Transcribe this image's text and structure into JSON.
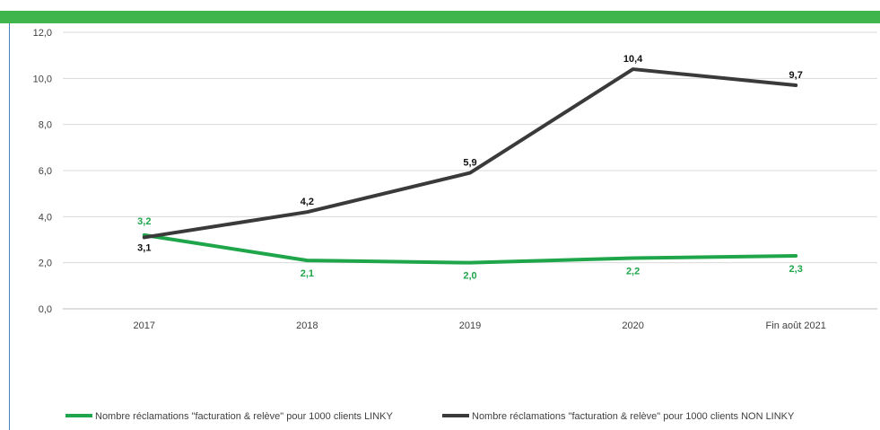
{
  "colors": {
    "top_bar": "#3fb54c",
    "linky": "#1fa64a",
    "non_linky": "#3a3a3a",
    "grid": "#d9d9d9"
  },
  "chart_data": {
    "type": "line",
    "categories": [
      "2017",
      "2018",
      "2019",
      "2020",
      "Fin août 2021"
    ],
    "ylim": [
      0,
      12
    ],
    "yticks": [
      "0,0",
      "2,0",
      "4,0",
      "6,0",
      "8,0",
      "10,0",
      "12,0"
    ],
    "grid": true,
    "legend_position": "bottom",
    "series": [
      {
        "name": "Nombre réclamations \"facturation & relève\" pour 1000 clients LINKY",
        "values": [
          3.2,
          2.1,
          2.0,
          2.2,
          2.3
        ],
        "labels": [
          "3,2",
          "2,1",
          "2,0",
          "2,2",
          "2,3"
        ],
        "color": "#1fa64a"
      },
      {
        "name": "Nombre réclamations \"facturation & relève\" pour 1000 clients NON LINKY",
        "values": [
          3.1,
          4.2,
          5.9,
          10.4,
          9.7
        ],
        "labels": [
          "3,1",
          "4,2",
          "5,9",
          "10,4",
          "9,7"
        ],
        "color": "#3a3a3a"
      }
    ]
  }
}
